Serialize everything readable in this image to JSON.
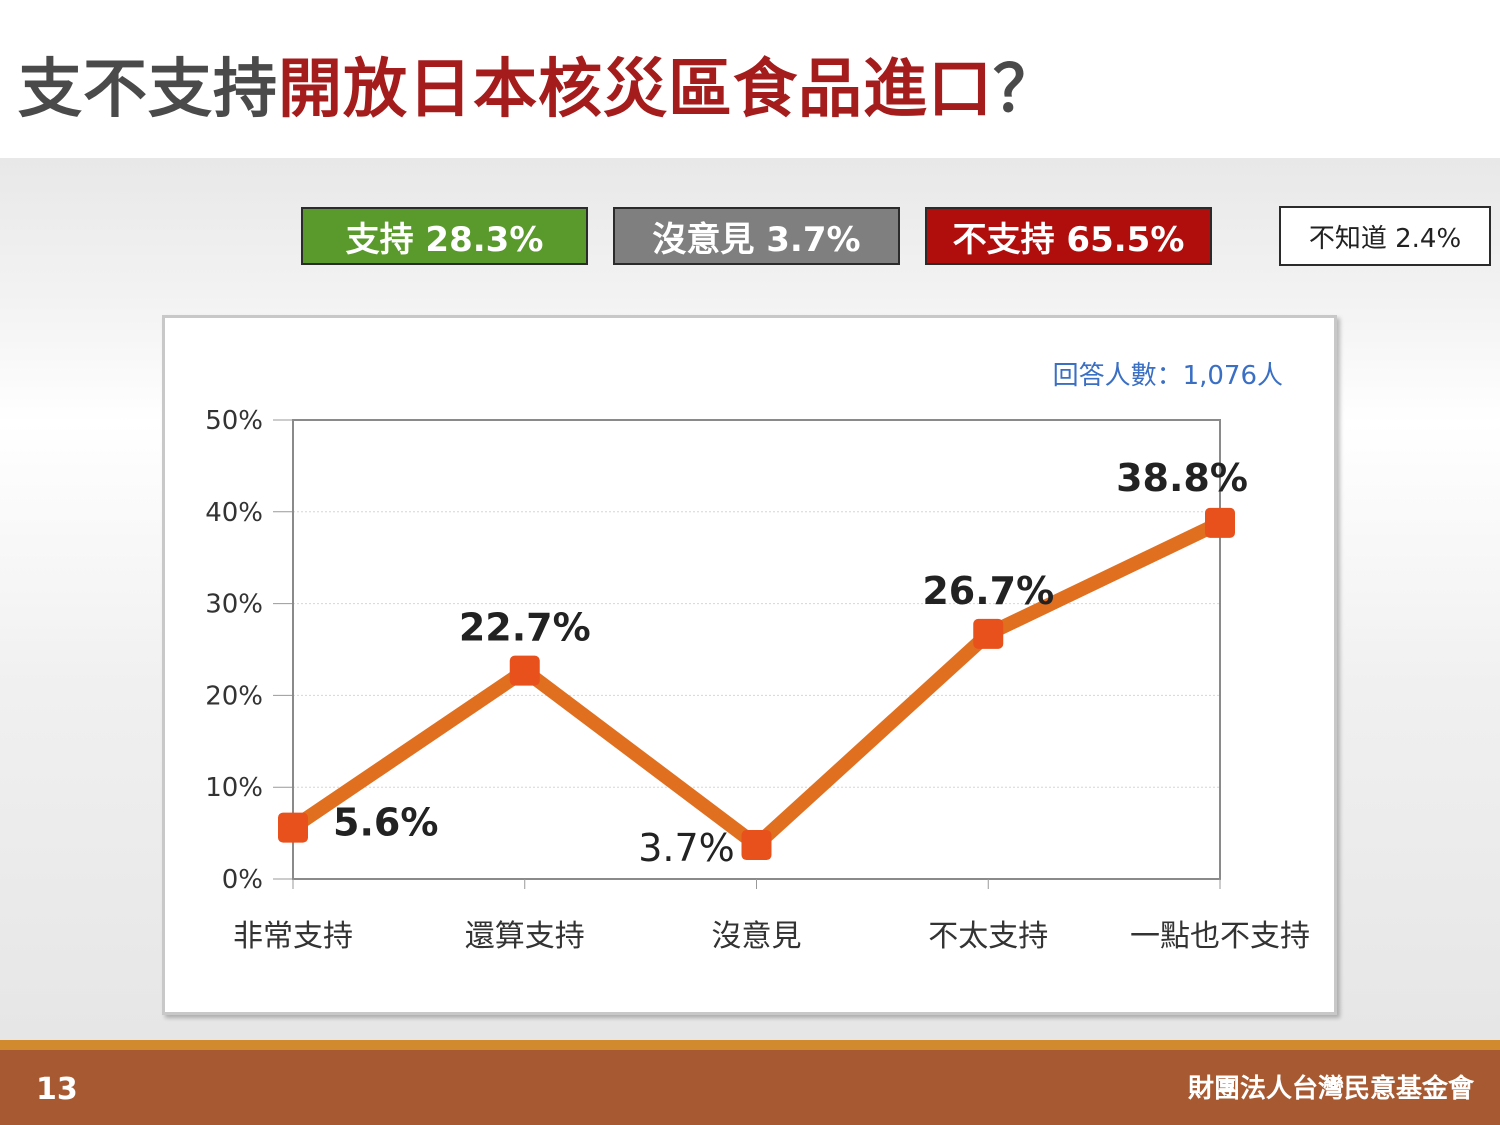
{
  "title": {
    "prefix": "支不支持",
    "highlight": "開放日本核災區食品進口",
    "suffix": "？"
  },
  "summary": {
    "support": "支持 28.3%",
    "no_opinion": "沒意見 3.7%",
    "oppose": "不支持 65.5%",
    "unknown": "不知道 2.4%"
  },
  "colors": {
    "support": "#5a9a2c",
    "no_opinion": "#7f7f7f",
    "oppose": "#b00d0d",
    "line": "#e07020",
    "marker": "#e8501c",
    "respondents": "#3a6fc4",
    "footer": "#a75a32"
  },
  "chart_data": {
    "type": "line",
    "categories": [
      "非常支持",
      "還算支持",
      "沒意見",
      "不太支持",
      "一點也不支持"
    ],
    "values": [
      5.6,
      22.7,
      3.7,
      26.7,
      38.8
    ],
    "data_labels": [
      "5.6%",
      "22.7%",
      "3.7%",
      "26.7%",
      "38.8%"
    ],
    "yticks": [
      "0%",
      "10%",
      "20%",
      "30%",
      "40%",
      "50%"
    ],
    "ylim": [
      0,
      50
    ],
    "grid": true,
    "annotation": "回答人數：1,076人"
  },
  "footer": {
    "page_number": "13",
    "organization": "財團法人台灣民意基金會"
  }
}
